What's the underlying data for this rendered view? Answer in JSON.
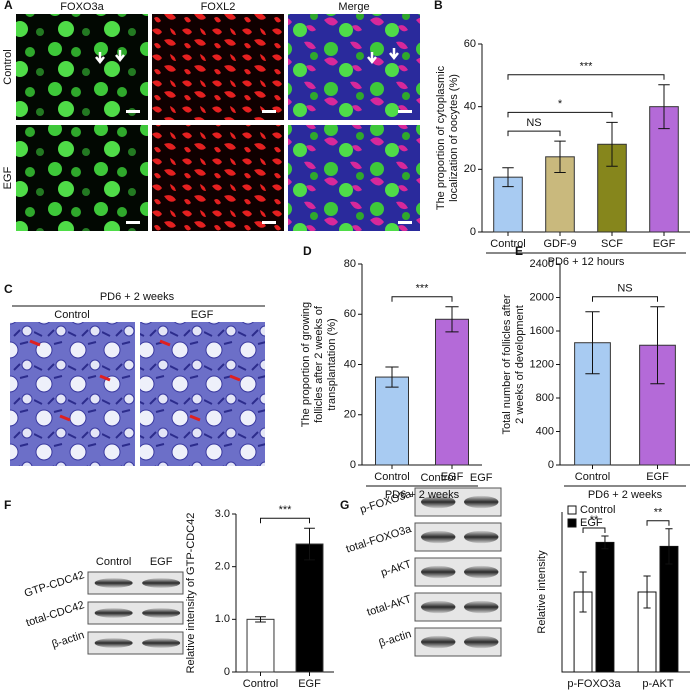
{
  "figure": {
    "image_panels": [
      {
        "label": "A",
        "columns": [
          "FOXO3a",
          "FOXL2",
          "Merge"
        ],
        "rows": [
          "Control",
          "EGF"
        ]
      },
      {
        "label": "C",
        "header": "PD6 + 2 weeks",
        "columns": [
          "Control",
          "EGF"
        ]
      }
    ],
    "blots": [
      {
        "columns": [
          "Control",
          "EGF"
        ],
        "rows": [
          "GTP-CDC42",
          "total-CDC42",
          "β-actin"
        ]
      },
      {
        "columns": [
          "Control",
          "EGF"
        ],
        "rows": [
          "p-FOXO3a",
          "total-FOXO3a",
          "p-AKT",
          "total-AKT",
          "β-actin"
        ]
      }
    ]
  },
  "chart_data": [
    {
      "type": "bar",
      "panel": "B",
      "ylabel": [
        "The proportion of cytoplasmic",
        "localization of oocytes (%)"
      ],
      "xlabel": "PD6 + 12 hours",
      "categories": [
        "Control",
        "GDF-9",
        "SCF",
        "EGF"
      ],
      "values": [
        17.5,
        24,
        28,
        40
      ],
      "errors": [
        3,
        5,
        7,
        7
      ],
      "colors": [
        "#a8cbf2",
        "#c9b97d",
        "#86861c",
        "#b46ad8"
      ],
      "ylim": [
        0,
        60
      ],
      "yticks": [
        0,
        20,
        40,
        60
      ],
      "annotations": [
        {
          "text": "NS",
          "from": 0,
          "to": 1
        },
        {
          "text": "*",
          "from": 0,
          "to": 2
        },
        {
          "text": "***",
          "from": 0,
          "to": 3
        }
      ]
    },
    {
      "type": "bar",
      "panel": "D",
      "ylabel": [
        "The proportion of growing",
        "follicles after 2 weeks of",
        "transplantation (%)"
      ],
      "xlabel": "PD6 + 2 weeks",
      "categories": [
        "Control",
        "EGF"
      ],
      "values": [
        35,
        58
      ],
      "errors": [
        4,
        5
      ],
      "colors": [
        "#a8cbf2",
        "#b46ad8"
      ],
      "ylim": [
        0,
        80
      ],
      "yticks": [
        0,
        20,
        40,
        60,
        80
      ],
      "annotations": [
        {
          "text": "***",
          "from": 0,
          "to": 1
        }
      ]
    },
    {
      "type": "bar",
      "panel": "E",
      "ylabel": [
        "Total number of follicles after",
        "2 weeks of development"
      ],
      "xlabel": "PD6 + 2 weeks",
      "categories": [
        "Control",
        "EGF"
      ],
      "values": [
        1460,
        1430
      ],
      "errors": [
        370,
        460
      ],
      "colors": [
        "#a8cbf2",
        "#b46ad8"
      ],
      "ylim": [
        0,
        2400
      ],
      "yticks": [
        0,
        400,
        800,
        1200,
        1600,
        2000,
        2400
      ],
      "annotations": [
        {
          "text": "NS",
          "from": 0,
          "to": 1
        }
      ]
    },
    {
      "type": "bar",
      "panel": "F",
      "ylabel": [
        "Relative intensity of GTP-CDC42"
      ],
      "categories": [
        "Control",
        "EGF"
      ],
      "values": [
        1.0,
        2.43
      ],
      "errors": [
        0.05,
        0.3
      ],
      "colors": [
        "#ffffff",
        "#000000"
      ],
      "ylim": [
        0,
        3
      ],
      "yticks": [
        0,
        {
          "value": 1,
          "label": "1.0"
        },
        {
          "value": 2,
          "label": "2.0"
        },
        {
          "value": 3,
          "label": "3.0"
        }
      ],
      "annotations": [
        {
          "text": "***",
          "from": 0,
          "to": 1
        }
      ]
    },
    {
      "type": "grouped_bar",
      "panel": "G",
      "ylabel": [
        "Relative intensity"
      ],
      "legend": "upper left",
      "categories": [
        "p-FOXO3a",
        "p-AKT"
      ],
      "series": [
        {
          "name": "Control",
          "color": "#ffffff",
          "values": [
            1.0,
            1.0
          ],
          "errors": [
            0.25,
            0.2
          ]
        },
        {
          "name": "EGF",
          "color": "#000000",
          "values": [
            1.62,
            1.57
          ],
          "errors": [
            0.08,
            0.22
          ]
        }
      ],
      "ylim": [
        0,
        2
      ],
      "annotations": [
        {
          "text": "**",
          "from": 0,
          "to": 0
        },
        {
          "text": "**",
          "from": 1,
          "to": 1
        }
      ]
    }
  ]
}
